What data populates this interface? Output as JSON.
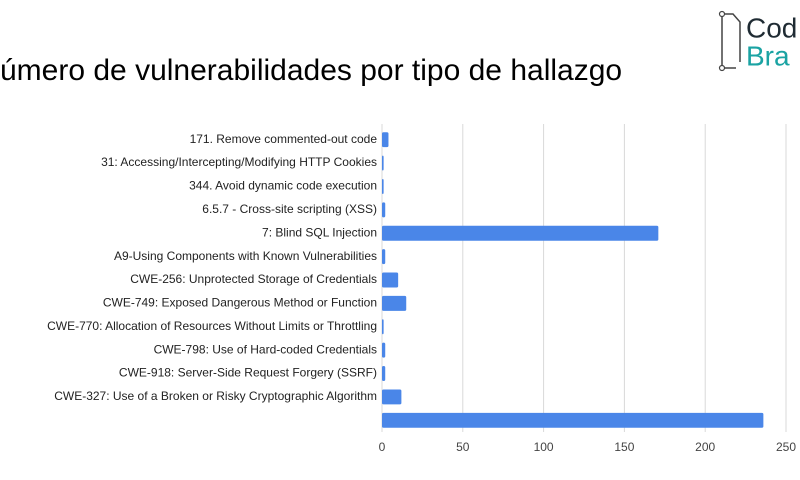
{
  "header": {
    "title": "úmero de vulnerabilidades por tipo de hallazgo",
    "logo_line1": "Cod",
    "logo_line2": "Bra"
  },
  "chart_data": {
    "type": "bar",
    "orientation": "horizontal",
    "categories": [
      "171. Remove commented-out code",
      "31: Accessing/Intercepting/Modifying HTTP Cookies",
      "344. Avoid dynamic code execution",
      "6.5.7 - Cross-site scripting (XSS)",
      "7: Blind SQL Injection",
      "A9-Using Components with Known Vulnerabilities",
      "CWE-256: Unprotected Storage of Credentials",
      "CWE-749: Exposed Dangerous Method or Function",
      "CWE-770: Allocation of Resources Without Limits or Throttling",
      "CWE-798: Use of Hard-coded Credentials",
      "CWE-918: Server-Side Request Forgery (SSRF)",
      "CWE-327: Use of a Broken or Risky Cryptographic Algorithm",
      null
    ],
    "values": [
      4,
      1,
      1,
      2,
      171,
      2,
      10,
      15,
      1,
      2,
      2,
      12,
      236
    ],
    "color": "#4a86e8",
    "xlim": [
      0,
      250
    ],
    "xticks": [
      0,
      50,
      100,
      150,
      200,
      250
    ],
    "grid": true
  }
}
